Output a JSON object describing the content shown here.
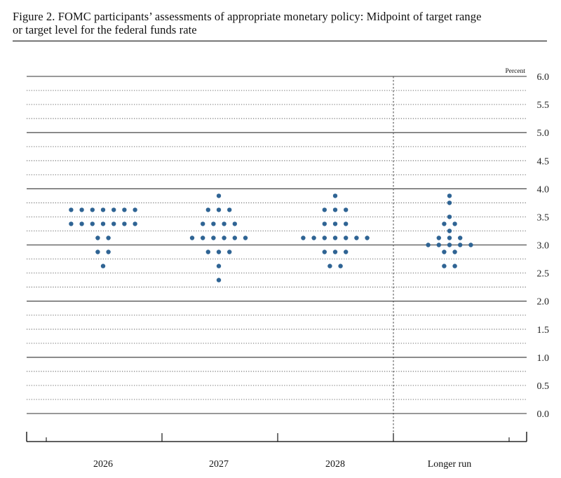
{
  "figure": {
    "title_line1": "Figure 2. FOMC participants’ assessments of appropriate monetary policy: Midpoint of target range",
    "title_line2": "or target level for the federal funds rate"
  },
  "chart_data": {
    "type": "scatter",
    "unit_label": "Percent",
    "categories": [
      "2026",
      "2027",
      "2028",
      "Longer run"
    ],
    "ylim": [
      0.0,
      6.0
    ],
    "y_ticks": [
      "0.0",
      "0.5",
      "1.0",
      "1.5",
      "2.0",
      "2.5",
      "3.0",
      "3.5",
      "4.0",
      "4.5",
      "5.0",
      "5.5",
      "6.0"
    ],
    "grid": "dotted horizontal gridlines every 0.25; solid lines at whole percents",
    "dot_color": "#2f6494",
    "divider": "dashed vertical line before Longer run",
    "dots": {
      "2026": [
        {
          "rate": 3.625,
          "count": 7
        },
        {
          "rate": 3.375,
          "count": 7
        },
        {
          "rate": 3.125,
          "count": 2
        },
        {
          "rate": 2.875,
          "count": 2
        },
        {
          "rate": 2.625,
          "count": 1
        }
      ],
      "2027": [
        {
          "rate": 3.875,
          "count": 1
        },
        {
          "rate": 3.625,
          "count": 3
        },
        {
          "rate": 3.375,
          "count": 4
        },
        {
          "rate": 3.125,
          "count": 6
        },
        {
          "rate": 2.875,
          "count": 3
        },
        {
          "rate": 2.625,
          "count": 1
        },
        {
          "rate": 2.375,
          "count": 1
        }
      ],
      "2028": [
        {
          "rate": 3.875,
          "count": 1
        },
        {
          "rate": 3.625,
          "count": 3
        },
        {
          "rate": 3.375,
          "count": 3
        },
        {
          "rate": 3.125,
          "count": 7
        },
        {
          "rate": 2.875,
          "count": 3
        },
        {
          "rate": 2.625,
          "count": 2
        }
      ],
      "Longer run": [
        {
          "rate": 3.875,
          "count": 1
        },
        {
          "rate": 3.75,
          "count": 1
        },
        {
          "rate": 3.5,
          "count": 1
        },
        {
          "rate": 3.375,
          "count": 2
        },
        {
          "rate": 3.25,
          "count": 1
        },
        {
          "rate": 3.125,
          "count": 3
        },
        {
          "rate": 3.0,
          "count": 5
        },
        {
          "rate": 2.875,
          "count": 2
        },
        {
          "rate": 2.625,
          "count": 2
        }
      ]
    }
  }
}
